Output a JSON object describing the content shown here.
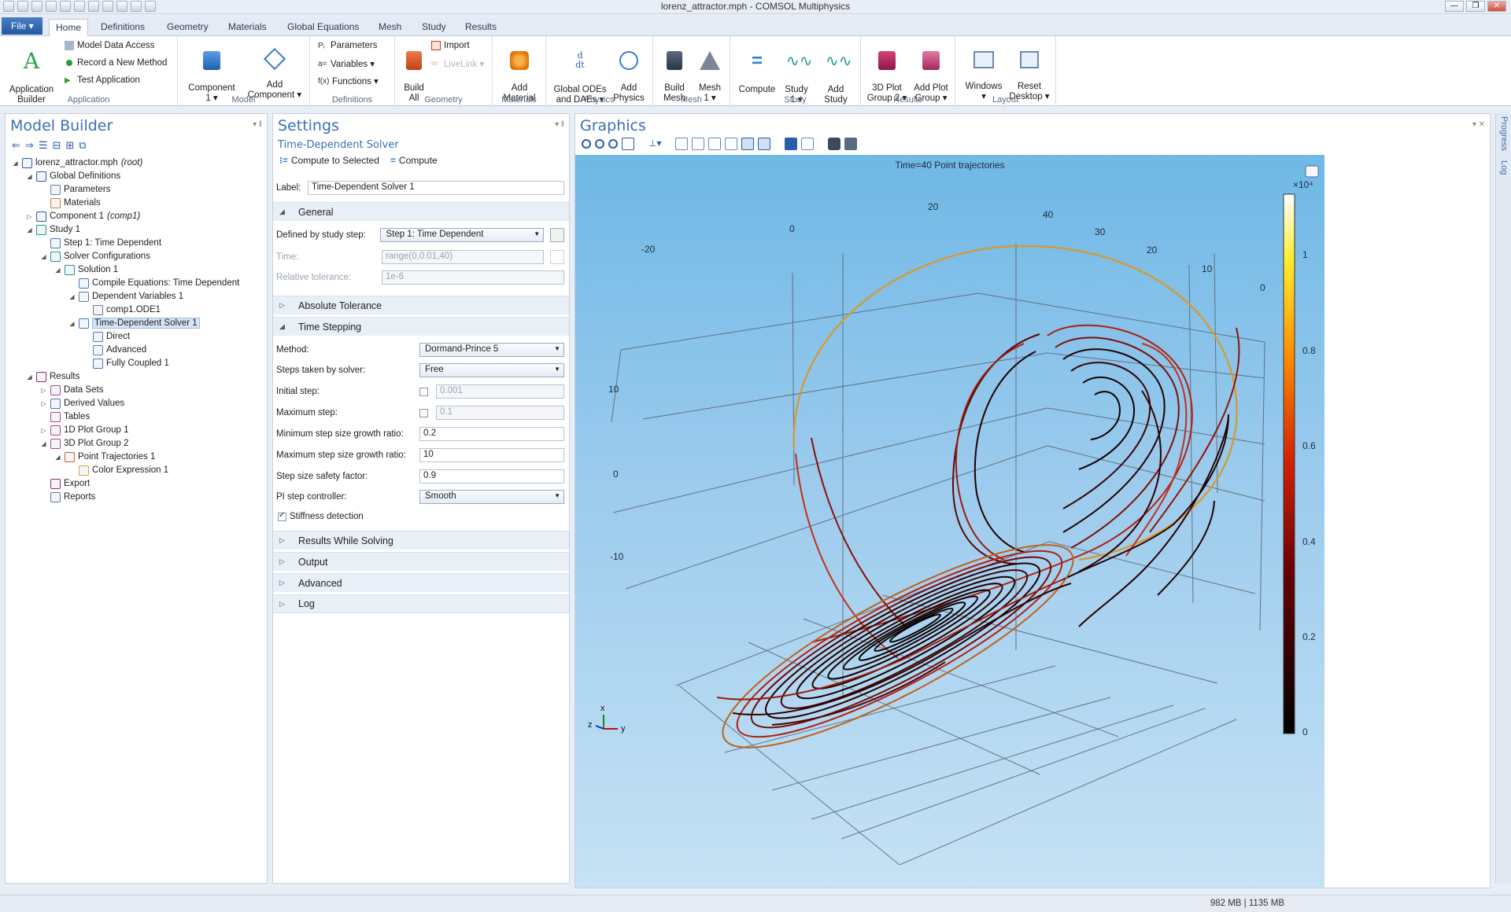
{
  "window": {
    "title": "lorenz_attractor.mph - COMSOL Multiphysics",
    "min_glyph": "—",
    "max_glyph": "❐",
    "close_glyph": "✕"
  },
  "ribbon": {
    "file_label": "File ▾",
    "tabs": [
      "Home",
      "Definitions",
      "Geometry",
      "Materials",
      "Global Equations",
      "Mesh",
      "Study",
      "Results"
    ],
    "groups": {
      "application": {
        "label": "Application",
        "builder": "Application\nBuilder",
        "model_data_access": "Model Data Access",
        "record_method": "Record a New Method",
        "test_app": "Test Application"
      },
      "model": {
        "label": "Model",
        "component": "Component\n1 ▾",
        "add_component": "Add\nComponent ▾"
      },
      "definitions": {
        "label": "Definitions",
        "parameters": "Parameters",
        "variables": "Variables ▾",
        "functions": "Functions ▾"
      },
      "geometry": {
        "label": "Geometry",
        "build_all": "Build\nAll",
        "import": "Import",
        "livelink": "LiveLink ▾"
      },
      "materials": {
        "label": "Materials",
        "add_material": "Add\nMaterial"
      },
      "physics": {
        "label": "Physics",
        "global_odes": "Global ODEs\nand DAEs ▾",
        "add_physics": "Add\nPhysics"
      },
      "mesh": {
        "label": "Mesh",
        "build_mesh": "Build\nMesh",
        "mesh1": "Mesh\n1 ▾"
      },
      "study": {
        "label": "Study",
        "compute": "Compute",
        "study1": "Study\n1 ▾",
        "add_study": "Add\nStudy"
      },
      "results": {
        "label": "Results",
        "plot_group": "3D Plot\nGroup 2 ▾",
        "add_plot_group": "Add Plot\nGroup ▾"
      },
      "layout": {
        "label": "Layout",
        "windows": "Windows\n▾",
        "reset_desktop": "Reset\nDesktop ▾"
      }
    }
  },
  "model_builder": {
    "title": "Model Builder",
    "tree": [
      {
        "label": "lorenz_attractor.mph",
        "suffix": "(root)",
        "indent": 0,
        "twisty": "◢"
      },
      {
        "label": "Global Definitions",
        "indent": 1,
        "twisty": "◢"
      },
      {
        "label": "Parameters",
        "indent": 2,
        "twisty": ""
      },
      {
        "label": "Materials",
        "indent": 2,
        "twisty": ""
      },
      {
        "label": "Component 1",
        "suffix": "(comp1)",
        "indent": 1,
        "twisty": "▷"
      },
      {
        "label": "Study 1",
        "indent": 1,
        "twisty": "◢"
      },
      {
        "label": "Step 1: Time Dependent",
        "indent": 2,
        "twisty": ""
      },
      {
        "label": "Solver Configurations",
        "indent": 2,
        "twisty": "◢"
      },
      {
        "label": "Solution 1",
        "indent": 3,
        "twisty": "◢"
      },
      {
        "label": "Compile Equations: Time Dependent",
        "indent": 4,
        "twisty": ""
      },
      {
        "label": "Dependent Variables 1",
        "indent": 4,
        "twisty": "◢"
      },
      {
        "label": "comp1.ODE1",
        "indent": 5,
        "twisty": ""
      },
      {
        "label": "Time-Dependent Solver 1",
        "indent": 4,
        "twisty": "◢",
        "selected": true
      },
      {
        "label": "Direct",
        "indent": 5,
        "twisty": ""
      },
      {
        "label": "Advanced",
        "indent": 5,
        "twisty": ""
      },
      {
        "label": "Fully Coupled 1",
        "indent": 5,
        "twisty": ""
      },
      {
        "label": "Results",
        "indent": 1,
        "twisty": "◢"
      },
      {
        "label": "Data Sets",
        "indent": 2,
        "twisty": "▷"
      },
      {
        "label": "Derived Values",
        "indent": 2,
        "twisty": "▷"
      },
      {
        "label": "Tables",
        "indent": 2,
        "twisty": ""
      },
      {
        "label": "1D Plot Group 1",
        "indent": 2,
        "twisty": "▷"
      },
      {
        "label": "3D Plot Group 2",
        "indent": 2,
        "twisty": "◢"
      },
      {
        "label": "Point Trajectories 1",
        "indent": 3,
        "twisty": "◢"
      },
      {
        "label": "Color Expression 1",
        "indent": 4,
        "twisty": ""
      },
      {
        "label": "Export",
        "indent": 2,
        "twisty": ""
      },
      {
        "label": "Reports",
        "indent": 2,
        "twisty": ""
      }
    ]
  },
  "settings": {
    "title": "Settings",
    "subtitle": "Time-Dependent Solver",
    "compute_to_selected": "Compute to Selected",
    "compute": "Compute",
    "label_field": {
      "label": "Label:",
      "value": "Time-Dependent Solver 1"
    },
    "general": {
      "header": "General",
      "defined_by_label": "Defined by study step:",
      "defined_by_value": "Step 1: Time Dependent",
      "time_label": "Time:",
      "time_value": "range(0,0.01,40)",
      "reltol_label": "Relative tolerance:",
      "reltol_value": "1e-6"
    },
    "absolute_tolerance": "Absolute Tolerance",
    "time_stepping": {
      "header": "Time Stepping",
      "method_label": "Method:",
      "method_value": "Dormand-Prince 5",
      "steps_label": "Steps taken by solver:",
      "steps_value": "Free",
      "initial_label": "Initial step:",
      "initial_value": "0.001",
      "max_step_label": "Maximum step:",
      "max_step_value": "0.1",
      "min_growth_label": "Minimum step size growth ratio:",
      "min_growth_value": "0.2",
      "max_growth_label": "Maximum step size growth ratio:",
      "max_growth_value": "10",
      "safety_label": "Step size safety factor:",
      "safety_value": "0.9",
      "pi_label": "PI step controller:",
      "pi_value": "Smooth",
      "stiffness_label": "Stiffness detection"
    },
    "collapsed_sections": [
      "Results While Solving",
      "Output",
      "Advanced",
      "Log"
    ]
  },
  "graphics": {
    "title": "Graphics",
    "plot_title": "Time=40  Point trajectories",
    "colorbar_multiplier": "×10⁴",
    "colorbar_ticks": [
      "1",
      "0.8",
      "0.6",
      "0.4",
      "0.2",
      "0"
    ],
    "axis_labels": {
      "top_x": [
        "-20",
        "0",
        "20",
        "40"
      ],
      "top_right": [
        "30",
        "20",
        "10",
        "0"
      ],
      "left_z": [
        "10",
        "0",
        "-10"
      ]
    },
    "triad": {
      "x": "x",
      "y": "y",
      "z": "z"
    },
    "side_tabs": [
      "Progress",
      "Log"
    ]
  },
  "status": {
    "memory": "982 MB | 1135 MB"
  },
  "colors": {
    "accent": "#3b6fb6",
    "sky_top": "#6fb8e6",
    "sky_bottom": "#c6e2f5"
  }
}
